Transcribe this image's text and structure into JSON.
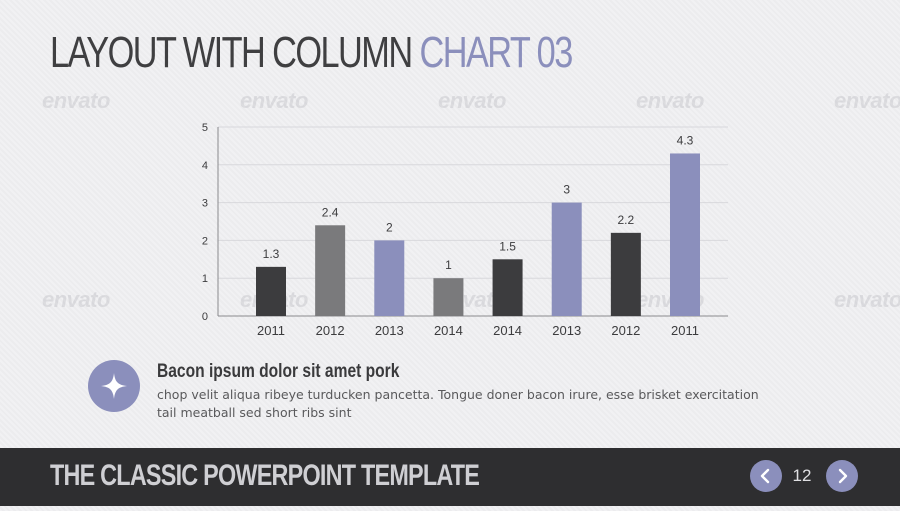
{
  "slide": {
    "title_main": "LAYOUT WITH COLUMN ",
    "title_accent": "CHART 03",
    "info_title": "Bacon ipsum dolor sit amet pork",
    "info_body": "chop velit aliqua ribeye turducken pancetta. Tongue doner bacon irure, esse brisket exercitation tail meatball sed short ribs sint"
  },
  "footer": {
    "title": "THE CLASSIC POWERPOINT TEMPLATE",
    "page_number": "12"
  },
  "watermark_text": "envato",
  "colors": {
    "accent": "#8b8fbc",
    "dark": "#3c3c3e",
    "gray": "#7a7a7c",
    "footer_bg": "#2e2e30"
  },
  "icons": {
    "info": "sparkle-icon",
    "prev": "chevron-left-icon",
    "next": "chevron-right-icon"
  },
  "chart_data": {
    "type": "bar",
    "categories": [
      "2011",
      "2012",
      "2013",
      "2014",
      "2014",
      "2013",
      "2012",
      "2011"
    ],
    "values": [
      1.3,
      2.4,
      2,
      1,
      1.5,
      3,
      2.2,
      4.3
    ],
    "bar_colors": [
      "#3c3c3e",
      "#7a7a7c",
      "#8b8fbc",
      "#7a7a7c",
      "#3c3c3e",
      "#8b8fbc",
      "#3c3c3e",
      "#8b8fbc"
    ],
    "data_labels": [
      "1.3",
      "2.4",
      "2",
      "1",
      "1.5",
      "3",
      "2.2",
      "4.3"
    ],
    "ylim": [
      0,
      5
    ],
    "yticks": [
      0,
      1,
      2,
      3,
      4,
      5
    ],
    "grid": true,
    "title": "",
    "xlabel": "",
    "ylabel": ""
  }
}
